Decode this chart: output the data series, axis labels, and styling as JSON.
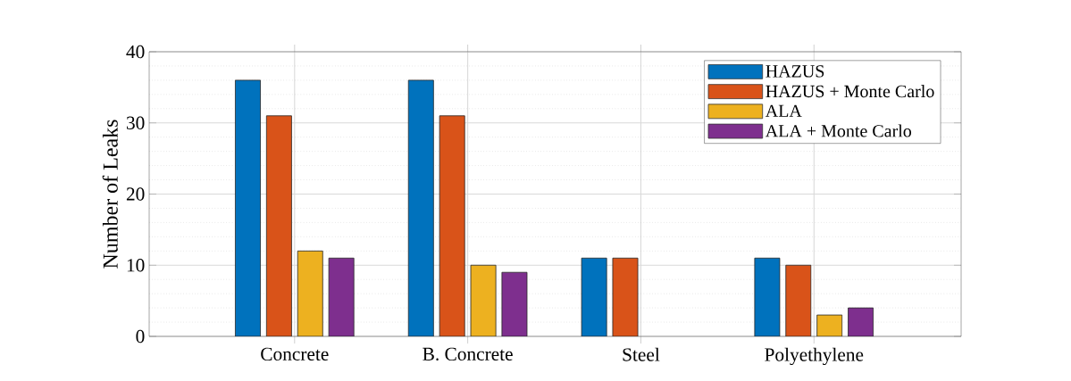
{
  "chart_data": {
    "type": "bar",
    "ylabel": "Number of Leaks",
    "categories": [
      "Concrete",
      "B. Concrete",
      "Steel",
      "Polyethylene"
    ],
    "series": [
      {
        "name": "HAZUS",
        "color": "#0072bd",
        "values": [
          36,
          36,
          11,
          11
        ]
      },
      {
        "name": "HAZUS + Monte Carlo",
        "color": "#d95319",
        "values": [
          31,
          31,
          11,
          10
        ]
      },
      {
        "name": "ALA",
        "color": "#edb120",
        "values": [
          12,
          10,
          null,
          3
        ]
      },
      {
        "name": "ALA + Monte Carlo",
        "color": "#7e2f8e",
        "values": [
          11,
          9,
          null,
          4
        ]
      }
    ],
    "ylim": [
      0,
      40
    ],
    "yticks": [
      0,
      10,
      20,
      30,
      40
    ],
    "grid": true,
    "legend": "top right"
  }
}
